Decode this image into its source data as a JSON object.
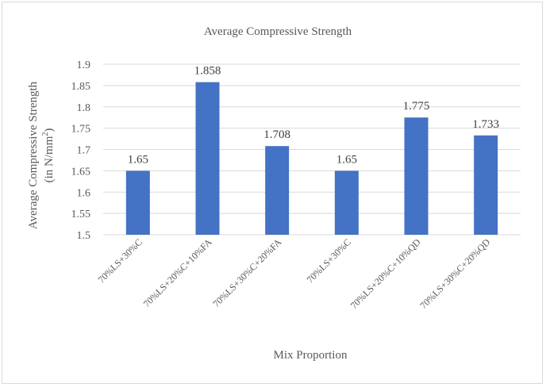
{
  "chart_data": {
    "type": "bar",
    "title": "Average Compressive Strength",
    "xlabel": "Mix Proportion",
    "ylabel_line1": "Average Compressive Strength",
    "ylabel_line2_prefix": "(in N/mm",
    "ylabel_line2_sup": "2",
    "ylabel_line2_suffix": ")",
    "categories": [
      "70%LS+30%C",
      "70%LS+20%C+10%FA",
      "70%LS+30%C+20%FA",
      "70%LS+30%C",
      "70%LS+20%C+10%QD",
      "70%LS+30%C+20%QD"
    ],
    "values": [
      1.65,
      1.858,
      1.708,
      1.65,
      1.775,
      1.733
    ],
    "data_labels": [
      "1.65",
      "1.858",
      "1.708",
      "1.65",
      "1.775",
      "1.733"
    ],
    "ylim": [
      1.5,
      1.9
    ],
    "yticks": [
      "1.5",
      "1.55",
      "1.6",
      "1.65",
      "1.7",
      "1.75",
      "1.8",
      "1.85",
      "1.9"
    ],
    "bar_color": "#4472c4",
    "grid": true,
    "legend": "none"
  }
}
